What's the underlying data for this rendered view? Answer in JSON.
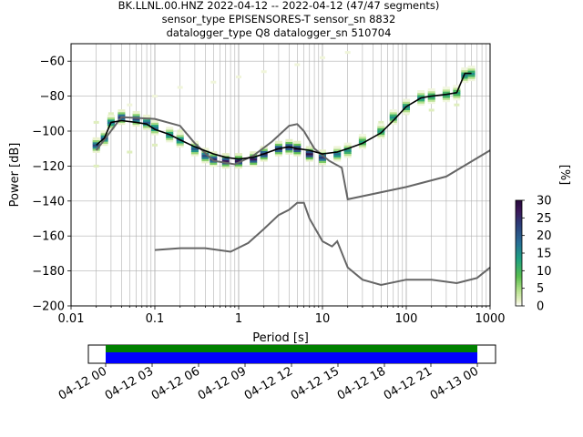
{
  "title_lines": [
    "BK.LLNL.00.HNZ   2022-04-12 -- 2022-04-12  (47/47 segments)",
    "sensor_type EPISENSORES-T sensor_sn 8832",
    "datalogger_type Q8 datalogger_sn 510704"
  ],
  "chart_data": {
    "type": "heatmap",
    "xlabel": "Period [s]",
    "ylabel": "Power [dB]",
    "x_scale": "log",
    "xlim": [
      0.01,
      1000
    ],
    "ylim": [
      -200,
      -50
    ],
    "grid": true,
    "x_ticks": [
      0.01,
      0.1,
      1,
      10,
      100,
      1000
    ],
    "x_tick_labels": [
      "0.01",
      "0.1",
      "1",
      "10",
      "100",
      "1000"
    ],
    "y_ticks": [
      -200,
      -180,
      -160,
      -140,
      -120,
      -100,
      -80,
      -60
    ],
    "y_tick_labels": [
      "−200",
      "−180",
      "−160",
      "−140",
      "−120",
      "−100",
      "−80",
      "−60"
    ],
    "colorbar": {
      "label": "[%]",
      "range": [
        0,
        30
      ],
      "ticks": [
        0,
        5,
        10,
        15,
        20,
        25,
        30
      ],
      "tick_labels": [
        "0",
        "5",
        "10",
        "15",
        "20",
        "25",
        "30"
      ],
      "colormap": "pqlx"
    },
    "ppsd_core": [
      {
        "x": 0.02,
        "y": -108,
        "pct": 22
      },
      {
        "x": 0.025,
        "y": -104,
        "pct": 20
      },
      {
        "x": 0.03,
        "y": -95,
        "pct": 18
      },
      {
        "x": 0.04,
        "y": -92,
        "pct": 24
      },
      {
        "x": 0.06,
        "y": -93,
        "pct": 22
      },
      {
        "x": 0.08,
        "y": -95,
        "pct": 20
      },
      {
        "x": 0.1,
        "y": -98,
        "pct": 18
      },
      {
        "x": 0.15,
        "y": -102,
        "pct": 17
      },
      {
        "x": 0.2,
        "y": -105,
        "pct": 18
      },
      {
        "x": 0.3,
        "y": -110,
        "pct": 20
      },
      {
        "x": 0.4,
        "y": -114,
        "pct": 22
      },
      {
        "x": 0.5,
        "y": -116,
        "pct": 25
      },
      {
        "x": 0.7,
        "y": -117,
        "pct": 27
      },
      {
        "x": 1.0,
        "y": -117,
        "pct": 28
      },
      {
        "x": 1.5,
        "y": -116,
        "pct": 27
      },
      {
        "x": 2.0,
        "y": -113,
        "pct": 26
      },
      {
        "x": 3.0,
        "y": -110,
        "pct": 26
      },
      {
        "x": 4.0,
        "y": -109,
        "pct": 27
      },
      {
        "x": 5.0,
        "y": -110,
        "pct": 28
      },
      {
        "x": 7.0,
        "y": -113,
        "pct": 29
      },
      {
        "x": 10.0,
        "y": -115,
        "pct": 24
      },
      {
        "x": 15.0,
        "y": -113,
        "pct": 18
      },
      {
        "x": 20.0,
        "y": -111,
        "pct": 15
      },
      {
        "x": 30.0,
        "y": -106,
        "pct": 13
      },
      {
        "x": 50.0,
        "y": -100,
        "pct": 14
      },
      {
        "x": 70.0,
        "y": -92,
        "pct": 15
      },
      {
        "x": 100.0,
        "y": -86,
        "pct": 16
      },
      {
        "x": 150.0,
        "y": -81,
        "pct": 16
      },
      {
        "x": 200.0,
        "y": -80,
        "pct": 14
      },
      {
        "x": 300.0,
        "y": -79,
        "pct": 14
      },
      {
        "x": 400.0,
        "y": -78,
        "pct": 13
      },
      {
        "x": 500.0,
        "y": -68,
        "pct": 16
      },
      {
        "x": 600.0,
        "y": -67,
        "pct": 15
      }
    ],
    "ppsd_faint": [
      {
        "x": 0.02,
        "y": -95,
        "pct": 2
      },
      {
        "x": 0.03,
        "y": -90,
        "pct": 2
      },
      {
        "x": 0.05,
        "y": -85,
        "pct": 1
      },
      {
        "x": 0.1,
        "y": -80,
        "pct": 1
      },
      {
        "x": 0.2,
        "y": -75,
        "pct": 1
      },
      {
        "x": 0.5,
        "y": -72,
        "pct": 1
      },
      {
        "x": 1.0,
        "y": -69,
        "pct": 1
      },
      {
        "x": 2.0,
        "y": -66,
        "pct": 1
      },
      {
        "x": 5.0,
        "y": -62,
        "pct": 1
      },
      {
        "x": 10.0,
        "y": -58,
        "pct": 1
      },
      {
        "x": 20.0,
        "y": -55,
        "pct": 1
      },
      {
        "x": 0.02,
        "y": -120,
        "pct": 2
      },
      {
        "x": 0.05,
        "y": -112,
        "pct": 2
      },
      {
        "x": 0.1,
        "y": -108,
        "pct": 2
      },
      {
        "x": 0.2,
        "y": -100,
        "pct": 2
      },
      {
        "x": 50.0,
        "y": -95,
        "pct": 2
      },
      {
        "x": 100.0,
        "y": -90,
        "pct": 2
      },
      {
        "x": 200.0,
        "y": -88,
        "pct": 2
      },
      {
        "x": 400.0,
        "y": -85,
        "pct": 2
      }
    ],
    "mean_curve": {
      "x": [
        0.02,
        0.025,
        0.03,
        0.04,
        0.06,
        0.08,
        0.1,
        0.15,
        0.2,
        0.3,
        0.5,
        0.7,
        1.0,
        1.5,
        2.0,
        3.0,
        4.0,
        5.0,
        7.0,
        10.0,
        15.0,
        20.0,
        30.0,
        50.0,
        70.0,
        100.0,
        150.0,
        200.0,
        300.0,
        400.0,
        500.0,
        600.0
      ],
      "y": [
        -108,
        -104,
        -95,
        -94,
        -95,
        -96,
        -99,
        -102,
        -105,
        -109,
        -113,
        -115,
        -116,
        -115,
        -113,
        -110,
        -109,
        -110,
        -111,
        -113,
        -112,
        -110,
        -107,
        -101,
        -94,
        -86,
        -81,
        -80,
        -79,
        -78,
        -67,
        -67
      ]
    },
    "model_curves": [
      {
        "x": [
          0.1,
          0.2,
          0.4,
          0.8,
          1.3,
          2.0,
          3.0,
          4.0,
          5.0,
          6.0,
          7.0,
          10.0,
          13.0,
          15.0,
          20.0,
          30.0,
          50.0,
          100.0,
          200.0,
          400.0,
          700.0,
          1000.0
        ],
        "y": [
          -168,
          -167,
          -167,
          -169,
          -164,
          -156,
          -148,
          -145,
          -141,
          -141,
          -150,
          -163,
          -166,
          -163,
          -178,
          -185,
          -188,
          -185,
          -185,
          -187,
          -184,
          -178
        ]
      },
      {
        "x": [
          0.02,
          0.04,
          0.1,
          0.2,
          0.3,
          0.5,
          0.9,
          1.5,
          2.5,
          4.0,
          5.0,
          6.0,
          8.0,
          12.0,
          17.0,
          20.0,
          100.0,
          300.0,
          1000.0
        ],
        "y": [
          -111,
          -92,
          -93,
          -97,
          -107,
          -117,
          -119,
          -114,
          -106,
          -97,
          -96,
          -100,
          -110,
          -117,
          -121,
          -139,
          -132,
          -126,
          -111
        ]
      }
    ]
  },
  "time_axis": {
    "tick_labels": [
      "04-12 00",
      "04-12 03",
      "04-12 06",
      "04-12 09",
      "04-12 12",
      "04-12 15",
      "04-12 18",
      "04-12 21",
      "04-13 00"
    ],
    "coverage_colors": [
      "#008000",
      "#0000ff"
    ]
  },
  "colors": {
    "mean": "#000000",
    "model": "#666666",
    "grid": "#b0b0b0"
  }
}
